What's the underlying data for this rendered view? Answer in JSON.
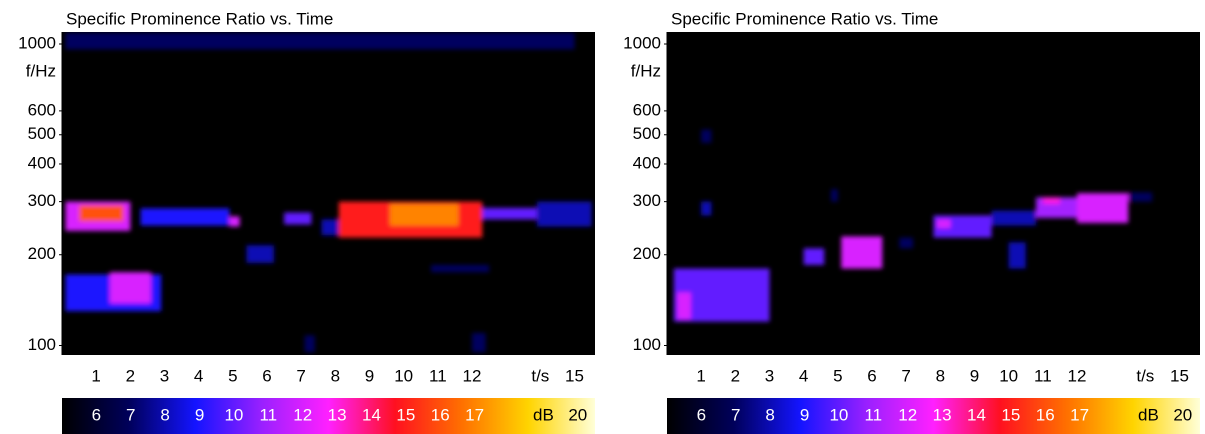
{
  "chart_data": [
    {
      "type": "heatmap",
      "title": "Specific Prominence Ratio vs. Time",
      "x_label": "t/s",
      "y_label": "f/Hz",
      "xlim": [
        0,
        15.6
      ],
      "xticks": [
        1,
        2,
        3,
        4,
        5,
        6,
        7,
        8,
        9,
        10,
        11,
        12,
        15
      ],
      "ylim": [
        93,
        1096
      ],
      "y_scale": "log",
      "yticks": [
        100,
        200,
        300,
        400,
        500,
        600,
        1000
      ],
      "colorbar": {
        "label": "dB",
        "lim": [
          5,
          20.5
        ],
        "ticks": [
          6,
          7,
          8,
          9,
          10,
          11,
          12,
          13,
          14,
          15,
          16,
          17,
          20
        ],
        "colormap": [
          "#000000",
          "#00005a",
          "#1414ff",
          "#9a20ff",
          "#ff20ff",
          "#ff1020",
          "#ff7000",
          "#ffd400",
          "#ffffd8"
        ]
      },
      "cells": [
        {
          "t0": 0.1,
          "t1": 15,
          "f0": 960,
          "f1": 1090,
          "db": 7
        },
        {
          "t0": 0.1,
          "t1": 2.0,
          "f0": 240,
          "f1": 300,
          "db": 12
        },
        {
          "t0": 0.5,
          "t1": 1.8,
          "f0": 258,
          "f1": 292,
          "db": 16
        },
        {
          "t0": 0.1,
          "t1": 2.9,
          "f0": 130,
          "f1": 172,
          "db": 9
        },
        {
          "t0": 1.4,
          "t1": 2.6,
          "f0": 138,
          "f1": 175,
          "db": 12
        },
        {
          "t0": 2.3,
          "t1": 4.9,
          "f0": 250,
          "f1": 285,
          "db": 9
        },
        {
          "t0": 4.9,
          "t1": 5.2,
          "f0": 248,
          "f1": 268,
          "db": 12
        },
        {
          "t0": 5.4,
          "t1": 6.2,
          "f0": 188,
          "f1": 215,
          "db": 8
        },
        {
          "t0": 6.5,
          "t1": 7.3,
          "f0": 252,
          "f1": 276,
          "db": 10
        },
        {
          "t0": 7.6,
          "t1": 8.7,
          "f0": 232,
          "f1": 262,
          "db": 8
        },
        {
          "t0": 8.1,
          "t1": 12.3,
          "f0": 228,
          "f1": 300,
          "db": 15
        },
        {
          "t0": 9.6,
          "t1": 11.6,
          "f0": 250,
          "f1": 295,
          "db": 17
        },
        {
          "t0": 12.3,
          "t1": 13.9,
          "f0": 262,
          "f1": 286,
          "db": 10
        },
        {
          "t0": 13.9,
          "t1": 15.5,
          "f0": 248,
          "f1": 300,
          "db": 8
        },
        {
          "t0": 10.8,
          "t1": 12.5,
          "f0": 175,
          "f1": 185,
          "db": 7
        },
        {
          "t0": 7.1,
          "t1": 7.4,
          "f0": 95,
          "f1": 108,
          "db": 7
        },
        {
          "t0": 12.0,
          "t1": 12.4,
          "f0": 95,
          "f1": 110,
          "db": 7
        }
      ]
    },
    {
      "type": "heatmap",
      "title": "Specific Prominence Ratio vs. Time",
      "x_label": "t/s",
      "y_label": "f/Hz",
      "xlim": [
        0,
        15.6
      ],
      "xticks": [
        1,
        2,
        3,
        4,
        5,
        6,
        7,
        8,
        9,
        10,
        11,
        12,
        15
      ],
      "ylim": [
        93,
        1096
      ],
      "y_scale": "log",
      "yticks": [
        100,
        200,
        300,
        400,
        500,
        600,
        1000
      ],
      "colorbar": {
        "label": "dB",
        "lim": [
          5,
          20.5
        ],
        "ticks": [
          6,
          7,
          8,
          9,
          10,
          11,
          12,
          13,
          14,
          15,
          16,
          17,
          20
        ],
        "colormap": [
          "#000000",
          "#00005a",
          "#1414ff",
          "#9a20ff",
          "#ff20ff",
          "#ff1020",
          "#ff7000",
          "#ffd400",
          "#ffffd8"
        ]
      },
      "cells": [
        {
          "t0": 0.2,
          "t1": 3.0,
          "f0": 120,
          "f1": 180,
          "db": 10
        },
        {
          "t0": 0.3,
          "t1": 0.7,
          "f0": 122,
          "f1": 150,
          "db": 12
        },
        {
          "t0": 1.0,
          "t1": 1.3,
          "f0": 270,
          "f1": 300,
          "db": 8
        },
        {
          "t0": 1.0,
          "t1": 1.3,
          "f0": 470,
          "f1": 520,
          "db": 7
        },
        {
          "t0": 4.0,
          "t1": 4.6,
          "f0": 185,
          "f1": 210,
          "db": 10
        },
        {
          "t0": 4.8,
          "t1": 5.0,
          "f0": 300,
          "f1": 330,
          "db": 7
        },
        {
          "t0": 5.1,
          "t1": 6.3,
          "f0": 180,
          "f1": 230,
          "db": 12
        },
        {
          "t0": 6.8,
          "t1": 7.2,
          "f0": 210,
          "f1": 228,
          "db": 7
        },
        {
          "t0": 7.8,
          "t1": 9.5,
          "f0": 228,
          "f1": 270,
          "db": 10
        },
        {
          "t0": 7.9,
          "t1": 8.3,
          "f0": 245,
          "f1": 262,
          "db": 12
        },
        {
          "t0": 9.5,
          "t1": 10.8,
          "f0": 250,
          "f1": 280,
          "db": 8
        },
        {
          "t0": 10.0,
          "t1": 10.5,
          "f0": 180,
          "f1": 220,
          "db": 8
        },
        {
          "t0": 10.8,
          "t1": 12.0,
          "f0": 265,
          "f1": 310,
          "db": 11
        },
        {
          "t0": 11.0,
          "t1": 11.5,
          "f0": 295,
          "f1": 310,
          "db": 13
        },
        {
          "t0": 12.0,
          "t1": 13.5,
          "f0": 255,
          "f1": 320,
          "db": 12
        },
        {
          "t0": 13.5,
          "t1": 14.2,
          "f0": 300,
          "f1": 322,
          "db": 7
        }
      ]
    }
  ]
}
